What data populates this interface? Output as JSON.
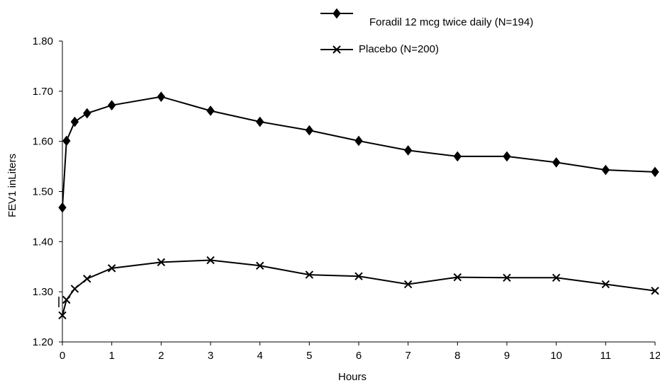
{
  "chart_data": {
    "type": "line",
    "title": "",
    "xlabel": "Hours",
    "ylabel": "FEV1 inLiters",
    "xlim": [
      0,
      12
    ],
    "ylim": [
      1.2,
      1.8
    ],
    "x_ticks": [
      "0",
      "1",
      "2",
      "3",
      "4",
      "5",
      "6",
      "7",
      "8",
      "9",
      "10",
      "11",
      "12"
    ],
    "y_ticks": [
      "1.20",
      "1.30",
      "1.40",
      "1.50",
      "1.60",
      "1.70",
      "1.80"
    ],
    "grid": false,
    "legend_position": "top-right",
    "series": [
      {
        "name": "Foradil 12 mcg twice daily (N=194)",
        "marker": "diamond",
        "color": "#000000",
        "x": [
          0,
          0.083,
          0.25,
          0.5,
          1,
          2,
          3,
          4,
          5,
          6,
          7,
          8,
          9,
          10,
          11,
          12
        ],
        "y": [
          1.468,
          1.601,
          1.639,
          1.656,
          1.672,
          1.689,
          1.661,
          1.639,
          1.622,
          1.601,
          1.582,
          1.57,
          1.57,
          1.558,
          1.543,
          1.539
        ]
      },
      {
        "name": "Placebo (N=200)",
        "marker": "x",
        "color": "#000000",
        "x": [
          0,
          0.083,
          0.25,
          0.5,
          1,
          2,
          3,
          4,
          5,
          6,
          7,
          8,
          9,
          10,
          11,
          12
        ],
        "y": [
          1.253,
          1.284,
          1.306,
          1.326,
          1.347,
          1.359,
          1.363,
          1.352,
          1.334,
          1.331,
          1.315,
          1.329,
          1.328,
          1.328,
          1.315,
          1.302
        ]
      }
    ]
  }
}
